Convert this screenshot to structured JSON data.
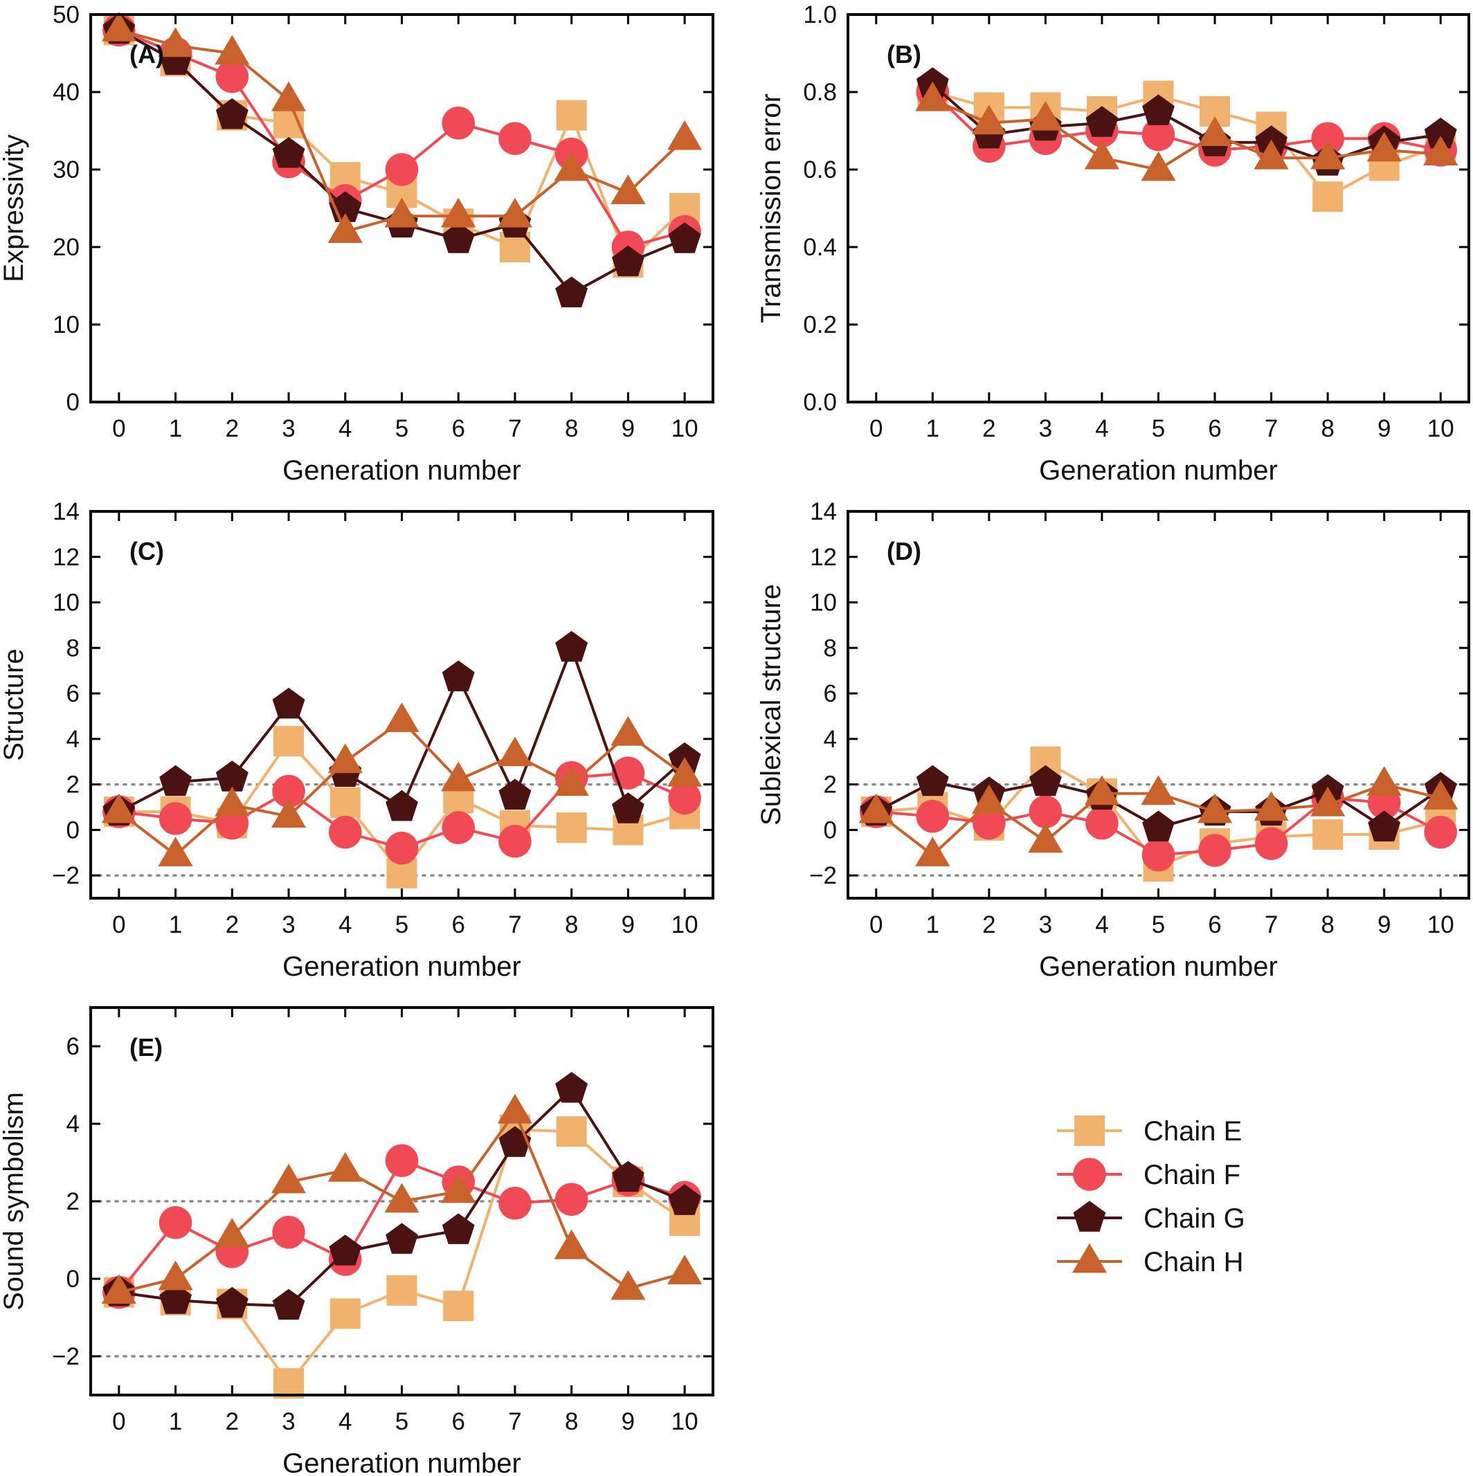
{
  "figure": {
    "legend": {
      "position": "lower-right (empty sixth panel)",
      "entries": [
        {
          "label": "Chain E",
          "color": "#f0b26c",
          "marker": "square"
        },
        {
          "label": "Chain F",
          "color": "#f24a55",
          "marker": "circle"
        },
        {
          "label": "Chain G",
          "color": "#4a1311",
          "marker": "pentagon"
        },
        {
          "label": "Chain H",
          "color": "#c8612a",
          "marker": "triangle"
        }
      ]
    }
  },
  "chart_data": [
    {
      "type": "line",
      "panel_label": "(A)",
      "xlabel": "Generation number",
      "ylabel": "Expressivity",
      "x": [
        0,
        1,
        2,
        3,
        4,
        5,
        6,
        7,
        8,
        9,
        10
      ],
      "xlim": [
        -0.5,
        10.5
      ],
      "ylim": [
        0,
        50
      ],
      "yticks": [
        0,
        10,
        20,
        30,
        40,
        50
      ],
      "ytick_labels": [
        "0",
        "10",
        "20",
        "30",
        "40",
        "50"
      ],
      "ref_lines": [],
      "grid": false,
      "series": [
        {
          "name": "Chain E",
          "values": [
            48,
            44,
            37,
            36,
            29,
            27,
            23,
            20,
            37,
            18,
            25
          ]
        },
        {
          "name": "Chain F",
          "values": [
            48,
            45,
            42,
            31,
            26,
            30,
            36,
            34,
            32,
            20,
            22
          ]
        },
        {
          "name": "Chain G",
          "values": [
            48,
            44,
            37,
            32,
            25,
            23,
            21,
            23,
            14,
            18,
            21
          ]
        },
        {
          "name": "Chain H",
          "values": [
            48,
            46,
            45,
            39,
            22,
            24,
            24,
            24,
            30,
            27,
            34
          ]
        }
      ]
    },
    {
      "type": "line",
      "panel_label": "(B)",
      "xlabel": "Generation number",
      "ylabel": "Transmission error",
      "x": [
        0,
        1,
        2,
        3,
        4,
        5,
        6,
        7,
        8,
        9,
        10
      ],
      "xlim": [
        -0.5,
        10.5
      ],
      "ylim": [
        0,
        1.0
      ],
      "yticks": [
        0,
        0.2,
        0.4,
        0.6,
        0.8,
        1.0
      ],
      "ytick_labels": [
        "0.0",
        "0.2",
        "0.4",
        "0.6",
        "0.8",
        "1.0"
      ],
      "ref_lines": [],
      "grid": false,
      "series": [
        {
          "name": "Chain E",
          "values": [
            null,
            0.8,
            0.76,
            0.76,
            0.75,
            0.79,
            0.75,
            0.71,
            0.53,
            0.61,
            0.66
          ]
        },
        {
          "name": "Chain F",
          "values": [
            null,
            0.8,
            0.66,
            0.68,
            0.7,
            0.69,
            0.65,
            0.66,
            0.68,
            0.68,
            0.65
          ]
        },
        {
          "name": "Chain G",
          "values": [
            null,
            0.82,
            0.69,
            0.71,
            0.72,
            0.75,
            0.67,
            0.67,
            0.62,
            0.67,
            0.69
          ]
        },
        {
          "name": "Chain H",
          "values": [
            null,
            0.78,
            0.72,
            0.73,
            0.63,
            0.6,
            0.69,
            0.63,
            0.63,
            0.65,
            0.64
          ]
        }
      ]
    },
    {
      "type": "line",
      "panel_label": "(C)",
      "xlabel": "Generation number",
      "ylabel": "Structure",
      "x": [
        0,
        1,
        2,
        3,
        4,
        5,
        6,
        7,
        8,
        9,
        10
      ],
      "xlim": [
        -0.5,
        10.5
      ],
      "ylim": [
        -3,
        14
      ],
      "yticks": [
        -2,
        0,
        2,
        4,
        6,
        8,
        10,
        12,
        14
      ],
      "ytick_labels": [
        "−2",
        "0",
        "2",
        "4",
        "6",
        "8",
        "10",
        "12",
        "14"
      ],
      "ref_lines": [
        -2,
        2
      ],
      "grid": false,
      "series": [
        {
          "name": "Chain E",
          "values": [
            0.8,
            0.8,
            0.3,
            3.9,
            1.2,
            -1.9,
            1.4,
            0.2,
            0.1,
            0.0,
            0.7
          ]
        },
        {
          "name": "Chain F",
          "values": [
            0.8,
            0.5,
            0.3,
            1.7,
            -0.1,
            -0.8,
            0.1,
            -0.5,
            2.3,
            2.5,
            1.4
          ]
        },
        {
          "name": "Chain G",
          "values": [
            0.8,
            2.1,
            2.3,
            5.5,
            2.5,
            1.0,
            6.7,
            1.5,
            8.0,
            0.9,
            3.1
          ]
        },
        {
          "name": "Chain H",
          "values": [
            0.8,
            -1.1,
            1.1,
            0.6,
            3.0,
            4.8,
            2.2,
            3.3,
            2.0,
            4.2,
            2.4
          ]
        }
      ]
    },
    {
      "type": "line",
      "panel_label": "(D)",
      "xlabel": "Generation number",
      "ylabel": "Sublexical structure",
      "x": [
        0,
        1,
        2,
        3,
        4,
        5,
        6,
        7,
        8,
        9,
        10
      ],
      "xlim": [
        -0.5,
        10.5
      ],
      "ylim": [
        -3,
        14
      ],
      "yticks": [
        -2,
        0,
        2,
        4,
        6,
        8,
        10,
        12,
        14
      ],
      "ytick_labels": [
        "−2",
        "0",
        "2",
        "4",
        "6",
        "8",
        "10",
        "12",
        "14"
      ],
      "ref_lines": [
        -2,
        2
      ],
      "grid": false,
      "series": [
        {
          "name": "Chain E",
          "values": [
            0.8,
            1.0,
            0.2,
            3.0,
            1.6,
            -1.6,
            -0.6,
            -0.3,
            -0.2,
            -0.2,
            0.4
          ]
        },
        {
          "name": "Chain F",
          "values": [
            0.8,
            0.6,
            0.3,
            0.8,
            0.3,
            -1.1,
            -0.9,
            -0.6,
            1.4,
            1.2,
            -0.1
          ]
        },
        {
          "name": "Chain G",
          "values": [
            0.8,
            2.1,
            1.6,
            2.1,
            1.5,
            0.1,
            0.8,
            0.8,
            1.7,
            0.1,
            1.8
          ]
        },
        {
          "name": "Chain H",
          "values": [
            0.8,
            -1.1,
            1.2,
            -0.5,
            1.6,
            1.6,
            0.8,
            0.9,
            1.1,
            2.0,
            1.4
          ]
        }
      ]
    },
    {
      "type": "line",
      "panel_label": "(E)",
      "xlabel": "Generation number",
      "ylabel": "Sound symbolism",
      "x": [
        0,
        1,
        2,
        3,
        4,
        5,
        6,
        7,
        8,
        9,
        10
      ],
      "xlim": [
        -0.5,
        10.5
      ],
      "ylim": [
        -3,
        7
      ],
      "yticks": [
        -2,
        0,
        2,
        4,
        6
      ],
      "ytick_labels": [
        "−2",
        "0",
        "2",
        "4",
        "6"
      ],
      "ref_lines": [
        -2,
        2
      ],
      "grid": false,
      "series": [
        {
          "name": "Chain E",
          "values": [
            -0.35,
            -0.55,
            -0.65,
            -2.7,
            -0.9,
            -0.3,
            -0.7,
            3.85,
            3.8,
            2.5,
            1.5
          ]
        },
        {
          "name": "Chain F",
          "values": [
            -0.35,
            1.45,
            0.7,
            1.2,
            0.5,
            3.05,
            2.5,
            1.95,
            2.05,
            2.55,
            2.1
          ]
        },
        {
          "name": "Chain G",
          "values": [
            -0.35,
            -0.55,
            -0.65,
            -0.7,
            0.7,
            1.0,
            1.25,
            3.5,
            4.9,
            2.6,
            2.0
          ]
        },
        {
          "name": "Chain H",
          "values": [
            -0.35,
            0.0,
            1.1,
            2.5,
            2.8,
            2.0,
            2.25,
            4.3,
            0.8,
            -0.25,
            0.15
          ]
        }
      ]
    }
  ]
}
